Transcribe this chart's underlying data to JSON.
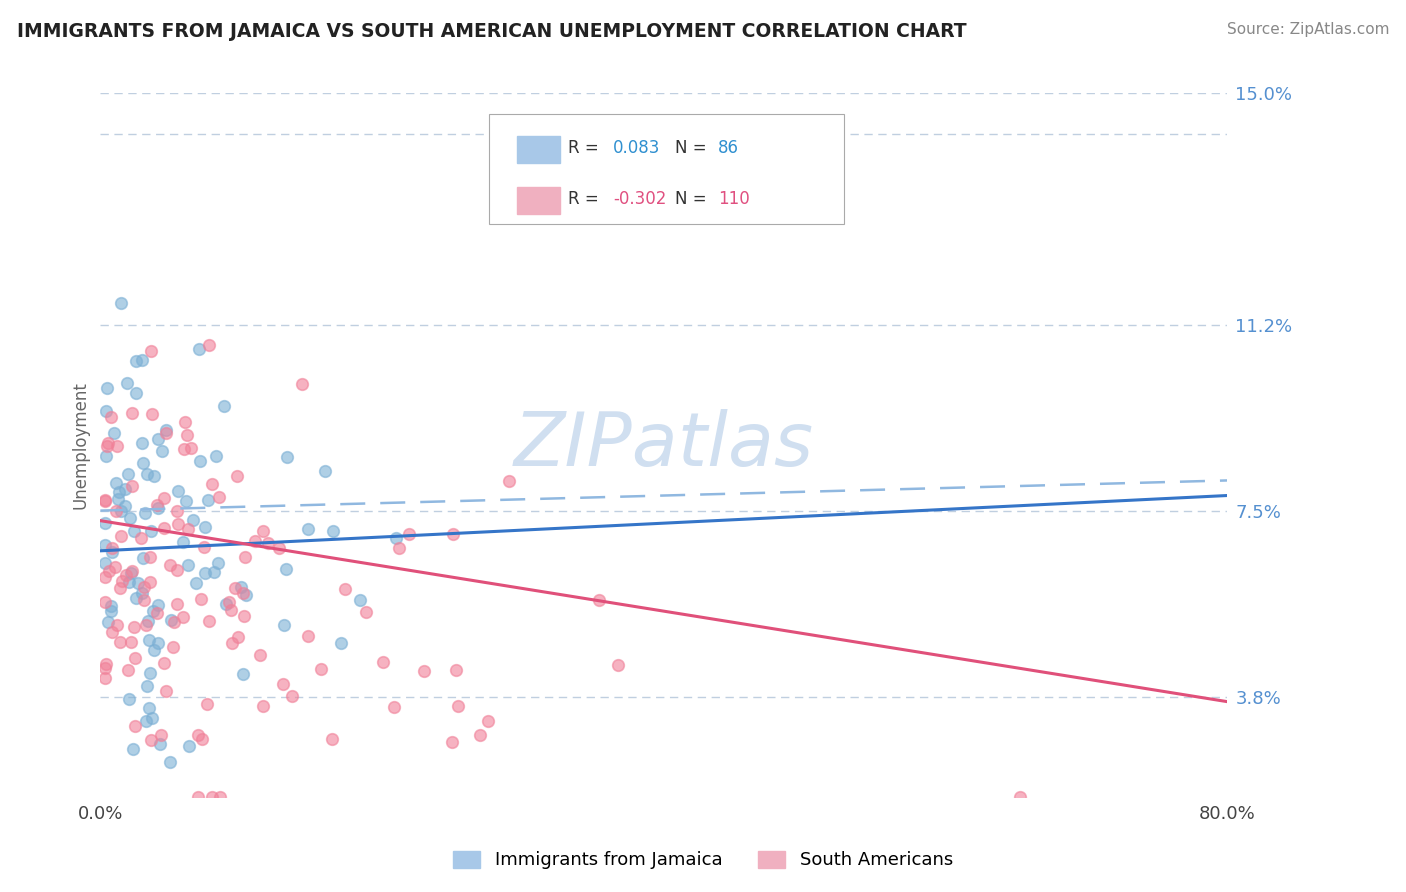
{
  "title": "IMMIGRANTS FROM JAMAICA VS SOUTH AMERICAN UNEMPLOYMENT CORRELATION CHART",
  "source_text": "Source: ZipAtlas.com",
  "ylabel": "Unemployment",
  "xlim": [
    0.0,
    0.8
  ],
  "ylim": [
    0.018,
    0.158
  ],
  "yticks": [
    0.038,
    0.075,
    0.112,
    0.15
  ],
  "ytick_labels": [
    "3.8%",
    "7.5%",
    "11.2%",
    "15.0%"
  ],
  "legend_bottom_labels": [
    "Immigrants from Jamaica",
    "South Americans"
  ],
  "series1_color": "#7bafd4",
  "series2_color": "#f08098",
  "trend1_color": "#3575c8",
  "trend2_color": "#e0507a",
  "trend1_dash_color": "#90b8e0",
  "watermark_color": "#d0dff0",
  "background_color": "#ffffff",
  "grid_color": "#c0cfe0",
  "title_color": "#222222",
  "ytick_color": "#5590d0",
  "legend1_patch_color": "#a8c8e8",
  "legend2_patch_color": "#f0b0c0",
  "legend1_R_color": "#3090d0",
  "legend2_R_color": "#e05080",
  "legend_N_color": "#333333"
}
